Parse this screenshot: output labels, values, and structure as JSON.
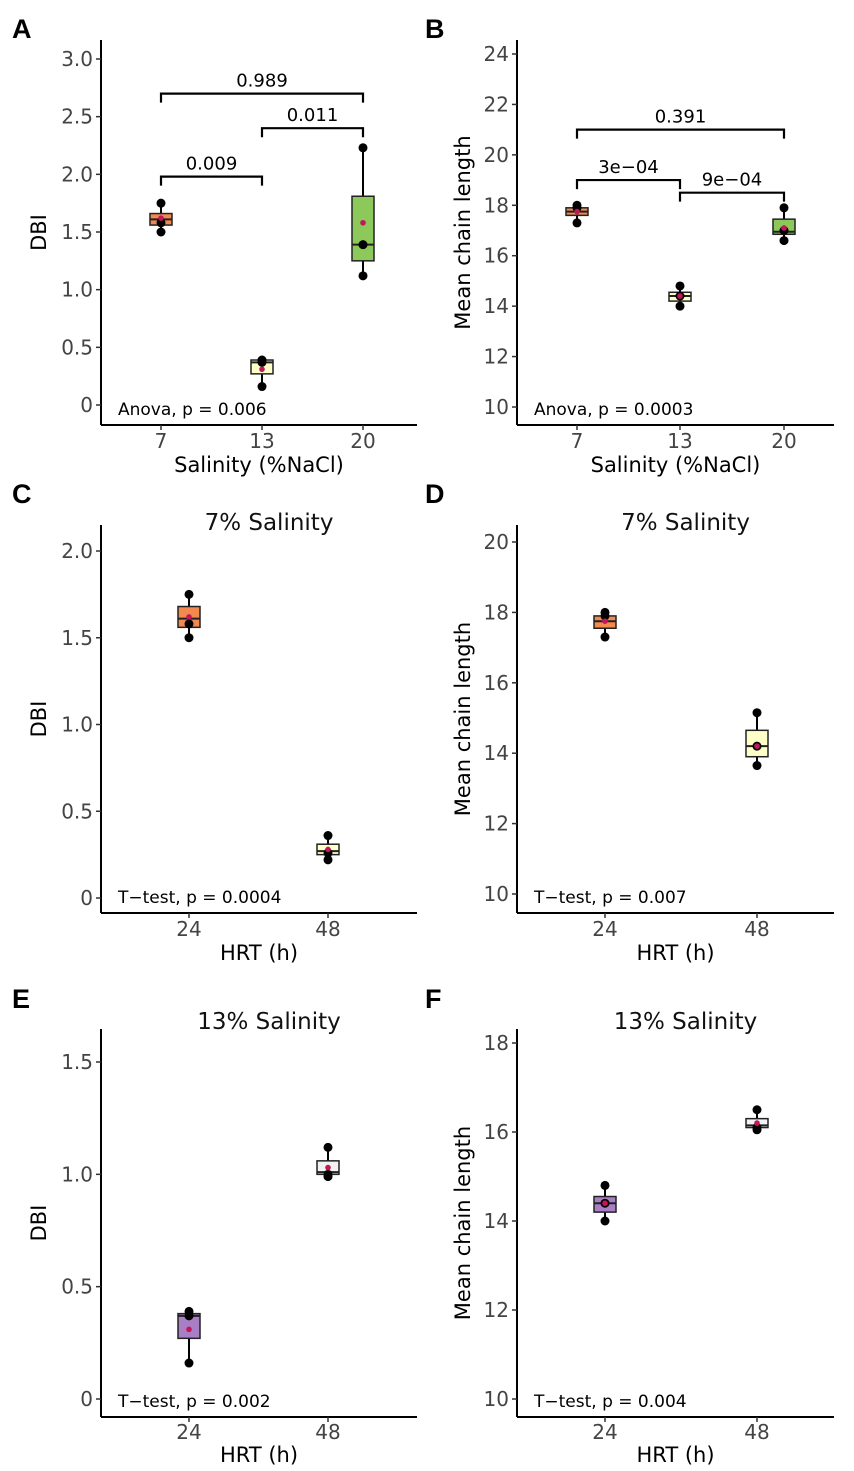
{
  "chart_data": [
    {
      "panel": "A",
      "type": "boxplot",
      "title": "",
      "ylabel": "DBI",
      "xlabel": "Salinity (%NaCl)",
      "ylim": [
        0,
        3.0
      ],
      "yticks": [
        "0",
        "0.5",
        "1.0",
        "1.5",
        "2.0",
        "2.5",
        "3.0"
      ],
      "categories": [
        "7",
        "13",
        "20"
      ],
      "boxes": [
        {
          "cat": "7",
          "color": "#F4894F",
          "q1": 1.56,
          "median": 1.61,
          "q3": 1.66,
          "min": 1.5,
          "max": 1.75,
          "mean": 1.62,
          "points": [
            1.5,
            1.58,
            1.75
          ]
        },
        {
          "cat": "13",
          "color": "#FFFFC8",
          "q1": 0.27,
          "median": 0.37,
          "q3": 0.39,
          "min": 0.16,
          "max": 0.39,
          "mean": 0.31,
          "points": [
            0.16,
            0.37,
            0.39
          ]
        },
        {
          "cat": "20",
          "color": "#8DC85A",
          "q1": 1.25,
          "median": 1.39,
          "q3": 1.81,
          "min": 1.12,
          "max": 2.23,
          "mean": 1.58,
          "points": [
            1.12,
            1.39,
            2.23
          ]
        }
      ],
      "brackets": [
        {
          "from": "7",
          "to": "13",
          "y": 1.98,
          "label": "0.009"
        },
        {
          "from": "13",
          "to": "20",
          "y": 2.4,
          "label": "0.011"
        },
        {
          "from": "7",
          "to": "20",
          "y": 2.7,
          "label": "0.989"
        }
      ],
      "annotation": "Anova, p = 0.006"
    },
    {
      "panel": "B",
      "type": "boxplot",
      "title": "",
      "ylabel": "Mean chain length",
      "xlabel": "Salinity (%NaCl)",
      "ylim": [
        10,
        24
      ],
      "yticks": [
        "10",
        "12",
        "14",
        "16",
        "18",
        "20",
        "22",
        "24"
      ],
      "categories": [
        "7",
        "13",
        "20"
      ],
      "boxes": [
        {
          "cat": "7",
          "color": "#F4894F",
          "q1": 17.6,
          "median": 17.75,
          "q3": 17.9,
          "min": 17.3,
          "max": 18.0,
          "mean": 17.75,
          "points": [
            17.3,
            17.9,
            18.0
          ]
        },
        {
          "cat": "13",
          "color": "#FFFFC8",
          "q1": 14.2,
          "median": 14.4,
          "q3": 14.55,
          "min": 14.0,
          "max": 14.8,
          "mean": 14.4,
          "points": [
            14.0,
            14.4,
            14.8
          ]
        },
        {
          "cat": "20",
          "color": "#8DC85A",
          "q1": 16.85,
          "median": 16.95,
          "q3": 17.45,
          "min": 16.6,
          "max": 17.9,
          "mean": 17.1,
          "points": [
            16.6,
            17.0,
            17.9
          ]
        }
      ],
      "brackets": [
        {
          "from": "7",
          "to": "13",
          "y": 19.0,
          "label": "3e−04"
        },
        {
          "from": "13",
          "to": "20",
          "y": 18.5,
          "label": "9e−04"
        },
        {
          "from": "7",
          "to": "20",
          "y": 21.0,
          "label": "0.391"
        }
      ],
      "annotation": "Anova, p = 0.0003"
    },
    {
      "panel": "C",
      "type": "boxplot",
      "title": "7% Salinity",
      "ylabel": "DBI",
      "xlabel": "HRT (h)",
      "ylim": [
        0,
        2.0
      ],
      "yticks": [
        "0",
        "0.5",
        "1.0",
        "1.5",
        "2.0"
      ],
      "categories": [
        "24",
        "48"
      ],
      "boxes": [
        {
          "cat": "24",
          "color": "#F4894F",
          "q1": 1.56,
          "median": 1.61,
          "q3": 1.68,
          "min": 1.5,
          "max": 1.75,
          "mean": 1.62,
          "points": [
            1.5,
            1.58,
            1.75
          ]
        },
        {
          "cat": "48",
          "color": "#FFFFC8",
          "q1": 0.25,
          "median": 0.27,
          "q3": 0.31,
          "min": 0.22,
          "max": 0.36,
          "mean": 0.28,
          "points": [
            0.22,
            0.26,
            0.36
          ]
        }
      ],
      "brackets": [],
      "annotation": "T−test, p = 0.0004"
    },
    {
      "panel": "D",
      "type": "boxplot",
      "title": "7% Salinity",
      "ylabel": "Mean chain length",
      "xlabel": "HRT (h)",
      "ylim": [
        10,
        20
      ],
      "yticks": [
        "10",
        "12",
        "14",
        "16",
        "18",
        "20"
      ],
      "categories": [
        "24",
        "48"
      ],
      "boxes": [
        {
          "cat": "24",
          "color": "#F4894F",
          "q1": 17.55,
          "median": 17.75,
          "q3": 17.9,
          "min": 17.3,
          "max": 18.0,
          "mean": 17.75,
          "points": [
            17.3,
            17.9,
            18.0
          ]
        },
        {
          "cat": "48",
          "color": "#FFFFC8",
          "q1": 13.9,
          "median": 14.2,
          "q3": 14.65,
          "min": 13.65,
          "max": 15.15,
          "mean": 14.2,
          "points": [
            13.65,
            14.2,
            15.15
          ]
        }
      ],
      "brackets": [],
      "annotation": "T−test, p = 0.007"
    },
    {
      "panel": "E",
      "type": "boxplot",
      "title": "13% Salinity",
      "ylabel": "DBI",
      "xlabel": "HRT (h)",
      "ylim": [
        0,
        1.5
      ],
      "yticks": [
        "0",
        "0.5",
        "1.0",
        "1.5"
      ],
      "categories": [
        "24",
        "48"
      ],
      "boxes": [
        {
          "cat": "24",
          "color": "#A87FC4",
          "q1": 0.27,
          "median": 0.37,
          "q3": 0.38,
          "min": 0.16,
          "max": 0.39,
          "mean": 0.31,
          "points": [
            0.16,
            0.37,
            0.39
          ]
        },
        {
          "cat": "48",
          "color": "#F2F2F2",
          "q1": 1.0,
          "median": 1.01,
          "q3": 1.06,
          "min": 0.99,
          "max": 1.12,
          "mean": 1.03,
          "points": [
            0.99,
            1.0,
            1.12
          ]
        }
      ],
      "brackets": [],
      "annotation": "T−test, p = 0.002"
    },
    {
      "panel": "F",
      "type": "boxplot",
      "title": "13% Salinity",
      "ylabel": "Mean chain length",
      "xlabel": "HRT (h)",
      "ylim": [
        10,
        18
      ],
      "yticks": [
        "10",
        "12",
        "14",
        "16",
        "18"
      ],
      "categories": [
        "24",
        "48"
      ],
      "boxes": [
        {
          "cat": "24",
          "color": "#A87FC4",
          "q1": 14.2,
          "median": 14.4,
          "q3": 14.55,
          "min": 14.0,
          "max": 14.8,
          "mean": 14.4,
          "points": [
            14.0,
            14.4,
            14.8
          ]
        },
        {
          "cat": "48",
          "color": "#F2F2F2",
          "q1": 16.1,
          "median": 16.15,
          "q3": 16.3,
          "min": 16.05,
          "max": 16.5,
          "mean": 16.2,
          "points": [
            16.05,
            16.1,
            16.5
          ]
        }
      ],
      "brackets": [],
      "annotation": "T−test, p = 0.004"
    }
  ]
}
